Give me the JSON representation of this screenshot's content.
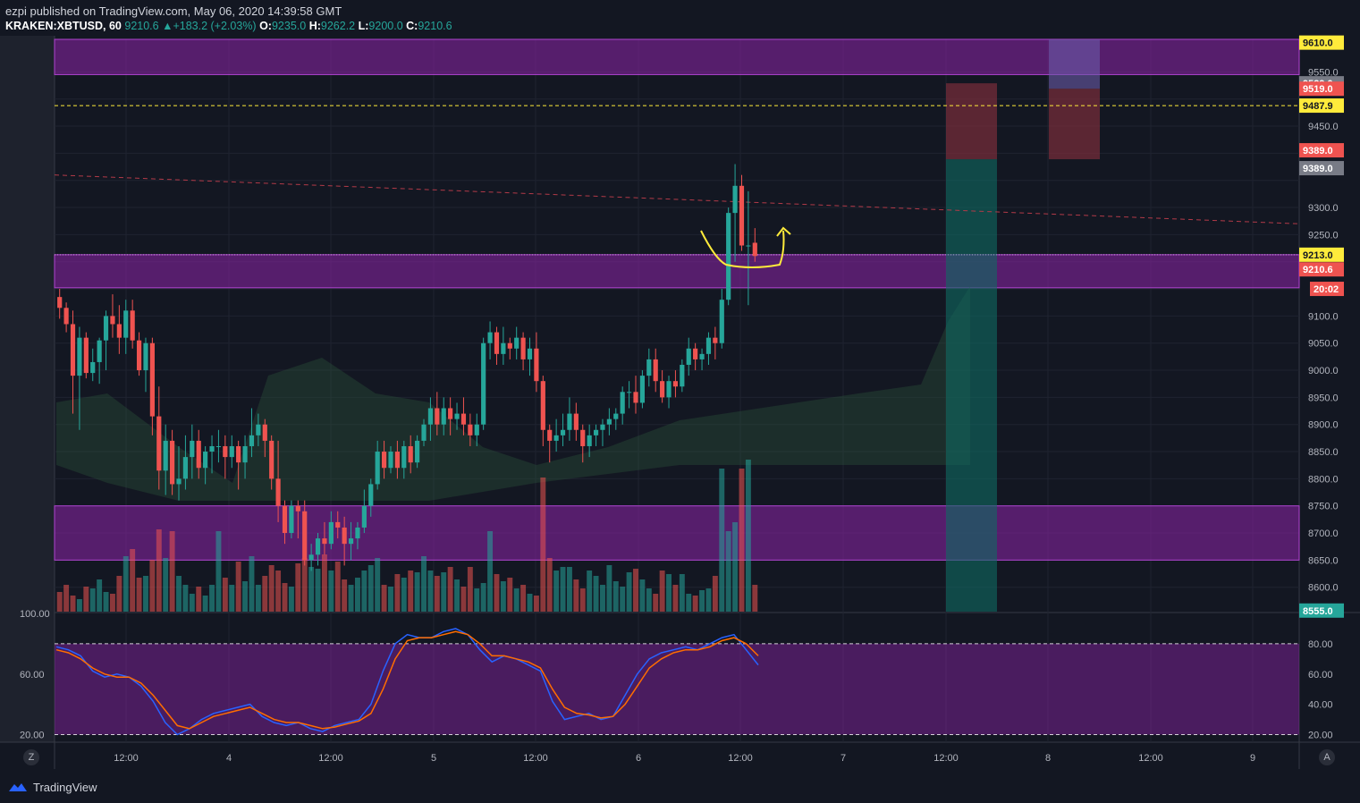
{
  "header": {
    "publisher": "ezpi published on TradingView.com, May 06, 2020 14:39:58 GMT",
    "symbol": "KRAKEN:XBTUSD, 60",
    "last": "9210.6",
    "change": "+183.2 (+2.03%)",
    "o_label": "O:",
    "o_value": "9235.0",
    "h_label": "H:",
    "h_value": "9262.2",
    "l_label": "L:",
    "l_value": "9200.0",
    "c_label": "C:",
    "c_value": "9210.6"
  },
  "colors": {
    "background": "#131722",
    "up": "#26a69a",
    "down": "#ef5350",
    "zone": "#8e24aa",
    "stoch_k": "#2962ff",
    "stoch_d": "#ff6d00",
    "annotation": "#ffeb3b"
  },
  "chart_data": [
    {
      "type": "candlestick",
      "title": "KRAKEN:XBTUSD, 60",
      "ylim": [
        8555,
        9610
      ],
      "y_ticks": [
        8600,
        8650,
        8700,
        8750,
        8800,
        8850,
        8900,
        8950,
        9000,
        9050,
        9100,
        9150,
        9200,
        9250,
        9300,
        9350,
        9400,
        9450,
        9500,
        9550
      ],
      "y_tick_labels": [
        "8600.0",
        "8650.0",
        "8700.0",
        "8750.0",
        "8800.0",
        "8850.0",
        "8900.0",
        "8950.0",
        "9000.0",
        "9050.0",
        "9100.0",
        "",
        "",
        "9250.0",
        "9300.0",
        "",
        "",
        "9450.0",
        "",
        "9550.0"
      ],
      "x_tick_labels": [
        "12:00",
        "4",
        "12:00",
        "5",
        "12:00",
        "6",
        "12:00",
        "7",
        "12:00",
        "8",
        "12:00",
        "9"
      ],
      "candles": [
        [
          9135,
          9150,
          9095,
          9115
        ],
        [
          9115,
          9125,
          9070,
          9085
        ],
        [
          9085,
          9110,
          8920,
          8990
        ],
        [
          8990,
          9080,
          8890,
          9060
        ],
        [
          9060,
          9070,
          8985,
          8995
        ],
        [
          8995,
          9040,
          8980,
          9015
        ],
        [
          9015,
          9060,
          8975,
          9055
        ],
        [
          9055,
          9110,
          9000,
          9100
        ],
        [
          9100,
          9140,
          9060,
          9085
        ],
        [
          9085,
          9120,
          9030,
          9060
        ],
        [
          9060,
          9130,
          9030,
          9110
        ],
        [
          9110,
          9130,
          9040,
          9055
        ],
        [
          9055,
          9070,
          8990,
          9000
        ],
        [
          9000,
          9060,
          8960,
          9050
        ],
        [
          9050,
          9060,
          8880,
          8915
        ],
        [
          8915,
          8970,
          8780,
          8815
        ],
        [
          8815,
          8900,
          8770,
          8870
        ],
        [
          8870,
          8890,
          8770,
          8790
        ],
        [
          8790,
          8860,
          8760,
          8800
        ],
        [
          8800,
          8880,
          8780,
          8840
        ],
        [
          8840,
          8900,
          8800,
          8870
        ],
        [
          8870,
          8890,
          8800,
          8820
        ],
        [
          8820,
          8860,
          8790,
          8850
        ],
        [
          8850,
          8880,
          8810,
          8860
        ],
        [
          8860,
          8890,
          8830,
          8860
        ],
        [
          8860,
          8880,
          8800,
          8840
        ],
        [
          8840,
          8880,
          8820,
          8860
        ],
        [
          8860,
          8870,
          8780,
          8830
        ],
        [
          8830,
          8880,
          8800,
          8860
        ],
        [
          8860,
          8930,
          8840,
          8880
        ],
        [
          8880,
          8920,
          8860,
          8900
        ],
        [
          8900,
          8910,
          8840,
          8870
        ],
        [
          8870,
          8880,
          8780,
          8800
        ],
        [
          8800,
          8870,
          8720,
          8750
        ],
        [
          8750,
          8760,
          8680,
          8700
        ],
        [
          8700,
          8760,
          8690,
          8750
        ],
        [
          8750,
          8760,
          8690,
          8740
        ],
        [
          8740,
          8760,
          8640,
          8650
        ],
        [
          8650,
          8680,
          8630,
          8660
        ],
        [
          8660,
          8700,
          8640,
          8690
        ],
        [
          8690,
          8720,
          8660,
          8680
        ],
        [
          8680,
          8740,
          8670,
          8720
        ],
        [
          8720,
          8740,
          8690,
          8710
        ],
        [
          8710,
          8730,
          8640,
          8680
        ],
        [
          8680,
          8720,
          8650,
          8690
        ],
        [
          8690,
          8720,
          8670,
          8710
        ],
        [
          8710,
          8780,
          8700,
          8750
        ],
        [
          8750,
          8800,
          8730,
          8790
        ],
        [
          8790,
          8870,
          8780,
          8850
        ],
        [
          8850,
          8870,
          8800,
          8820
        ],
        [
          8820,
          8860,
          8810,
          8850
        ],
        [
          8850,
          8870,
          8800,
          8820
        ],
        [
          8820,
          8870,
          8800,
          8860
        ],
        [
          8860,
          8880,
          8810,
          8830
        ],
        [
          8830,
          8880,
          8820,
          8870
        ],
        [
          8870,
          8910,
          8860,
          8900
        ],
        [
          8900,
          8950,
          8870,
          8930
        ],
        [
          8930,
          8960,
          8880,
          8900
        ],
        [
          8900,
          8950,
          8880,
          8930
        ],
        [
          8930,
          8950,
          8880,
          8910
        ],
        [
          8910,
          8940,
          8890,
          8920
        ],
        [
          8920,
          8950,
          8880,
          8900
        ],
        [
          8900,
          8920,
          8860,
          8880
        ],
        [
          8880,
          8920,
          8860,
          8900
        ],
        [
          8900,
          9060,
          8890,
          9050
        ],
        [
          9050,
          9090,
          9020,
          9070
        ],
        [
          9070,
          9080,
          9010,
          9030
        ],
        [
          9030,
          9080,
          9010,
          9050
        ],
        [
          9050,
          9060,
          9020,
          9040
        ],
        [
          9040,
          9080,
          9020,
          9060
        ],
        [
          9060,
          9070,
          9000,
          9020
        ],
        [
          9020,
          9060,
          8990,
          9040
        ],
        [
          9040,
          9070,
          8960,
          8980
        ],
        [
          8980,
          8990,
          8860,
          8890
        ],
        [
          8890,
          8900,
          8830,
          8870
        ],
        [
          8870,
          8910,
          8850,
          8880
        ],
        [
          8880,
          8920,
          8860,
          8890
        ],
        [
          8890,
          8950,
          8870,
          8920
        ],
        [
          8920,
          8940,
          8870,
          8890
        ],
        [
          8890,
          8900,
          8830,
          8860
        ],
        [
          8860,
          8900,
          8840,
          8880
        ],
        [
          8880,
          8900,
          8860,
          8890
        ],
        [
          8890,
          8910,
          8860,
          8900
        ],
        [
          8900,
          8930,
          8880,
          8910
        ],
        [
          8910,
          8930,
          8890,
          8920
        ],
        [
          8920,
          8970,
          8900,
          8960
        ],
        [
          8960,
          8980,
          8930,
          8960
        ],
        [
          8960,
          8990,
          8920,
          8940
        ],
        [
          8940,
          9000,
          8930,
          8990
        ],
        [
          8990,
          9040,
          8970,
          9020
        ],
        [
          9020,
          9040,
          8960,
          8980
        ],
        [
          8980,
          9000,
          8940,
          8950
        ],
        [
          8950,
          8990,
          8930,
          8980
        ],
        [
          8980,
          9000,
          8950,
          8970
        ],
        [
          8970,
          9020,
          8960,
          9010
        ],
        [
          9010,
          9060,
          8990,
          9040
        ],
        [
          9040,
          9050,
          9000,
          9020
        ],
        [
          9020,
          9040,
          9000,
          9030
        ],
        [
          9030,
          9070,
          9010,
          9060
        ],
        [
          9060,
          9080,
          9020,
          9050
        ],
        [
          9050,
          9150,
          9040,
          9130
        ],
        [
          9130,
          9300,
          9120,
          9290
        ],
        [
          9290,
          9380,
          9200,
          9340
        ],
        [
          9340,
          9360,
          9220,
          9230
        ],
        [
          9230,
          9330,
          9120,
          9230
        ],
        [
          9235,
          9262,
          9200,
          9210.6
        ]
      ],
      "horizontal_levels": [
        9529.0,
        9519.0,
        9487.9,
        9389.0,
        9213.0
      ],
      "price_labels": [
        "9610.0",
        "9529.0",
        "9519.0",
        "9487.9",
        "9389.0",
        "9389.0",
        "9213.0",
        "9210.6",
        "20:02",
        "8555.0"
      ]
    },
    {
      "type": "line",
      "title": "Stochastic RSI",
      "ylim": [
        15,
        100
      ],
      "y_tick_labels_left": [
        "100.00",
        "60.00",
        "20.00"
      ],
      "y_tick_labels_right": [
        "80.00",
        "60.00",
        "40.00",
        "20.00"
      ],
      "bands": [
        80,
        20
      ],
      "series": [
        {
          "values": [
            78,
            76,
            72,
            62,
            58,
            60,
            58,
            52,
            42,
            28,
            20,
            24,
            30,
            34,
            36,
            38,
            40,
            32,
            28,
            26,
            28,
            24,
            22,
            26,
            28,
            30,
            40,
            62,
            80,
            86,
            84,
            84,
            88,
            90,
            86,
            76,
            68,
            72,
            70,
            66,
            62,
            42,
            30,
            32,
            34,
            30,
            32,
            46,
            60,
            70,
            74,
            76,
            78,
            76,
            80,
            84,
            86,
            76,
            66
          ]
        },
        {
          "values": [
            76,
            74,
            70,
            64,
            60,
            58,
            58,
            54,
            46,
            36,
            26,
            24,
            28,
            32,
            34,
            36,
            38,
            34,
            30,
            28,
            28,
            26,
            24,
            25,
            27,
            29,
            34,
            50,
            70,
            82,
            84,
            84,
            86,
            88,
            86,
            80,
            72,
            72,
            70,
            68,
            64,
            50,
            38,
            34,
            33,
            31,
            32,
            40,
            52,
            64,
            70,
            74,
            76,
            76,
            78,
            82,
            84,
            80,
            72
          ]
        }
      ]
    }
  ]
}
